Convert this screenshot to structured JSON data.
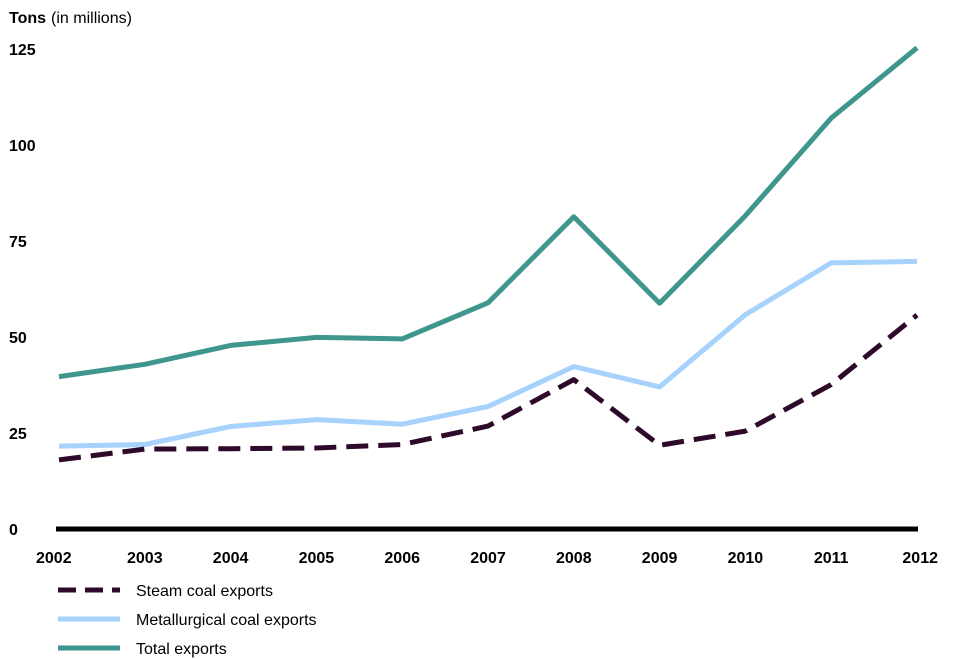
{
  "chart_data": {
    "type": "line",
    "y_unit_label_bold": "Tons",
    "y_unit_label_rest": "(in millions)",
    "x": [
      "2002",
      "2003",
      "2004",
      "2005",
      "2006",
      "2007",
      "2008",
      "2009",
      "2010",
      "2011",
      "2012"
    ],
    "y_ticks": [
      0,
      25,
      50,
      75,
      100,
      125
    ],
    "ylim": [
      0,
      125
    ],
    "grid": false,
    "legend_position": "bottom-left",
    "series": [
      {
        "name": "Steam coal exports",
        "color": "#2e0a2a",
        "dash": "dashed",
        "values": [
          18.0,
          20.8,
          20.9,
          21.1,
          22.0,
          26.8,
          38.9,
          21.8,
          25.5,
          37.6,
          55.7
        ]
      },
      {
        "name": "Metallurgical coal exports",
        "color": "#a6d2fb",
        "dash": "solid",
        "values": [
          21.6,
          22.0,
          26.7,
          28.5,
          27.3,
          31.9,
          42.3,
          37.0,
          55.8,
          69.3,
          69.7
        ]
      },
      {
        "name": "Total exports",
        "color": "#3e968c",
        "dash": "solid",
        "values": [
          39.7,
          42.9,
          47.8,
          49.9,
          49.5,
          58.9,
          81.3,
          58.8,
          81.6,
          107.0,
          125.3
        ]
      }
    ]
  }
}
